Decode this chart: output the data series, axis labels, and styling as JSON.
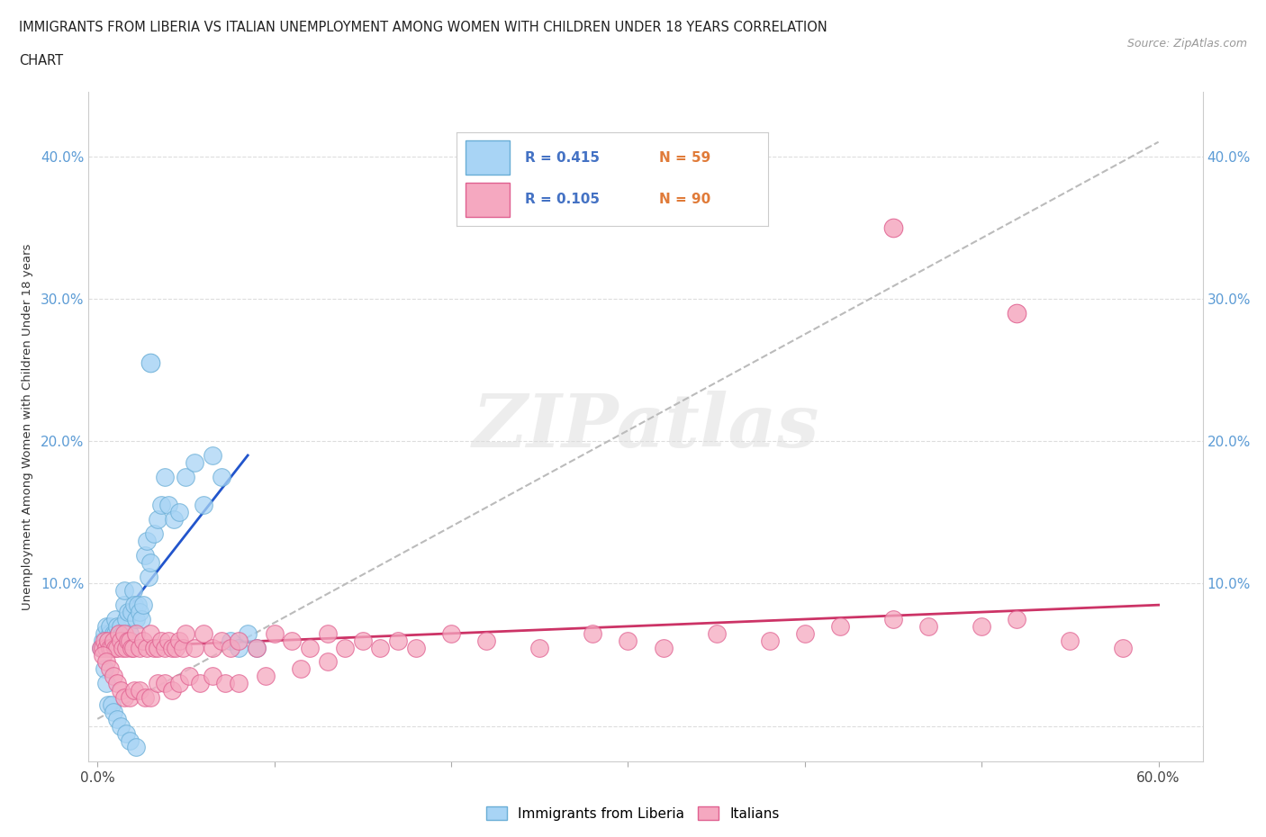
{
  "title_line1": "IMMIGRANTS FROM LIBERIA VS ITALIAN UNEMPLOYMENT AMONG WOMEN WITH CHILDREN UNDER 18 YEARS CORRELATION",
  "title_line2": "CHART",
  "source": "Source: ZipAtlas.com",
  "ylabel": "Unemployment Among Women with Children Under 18 years",
  "xlim": [
    -0.005,
    0.625
  ],
  "ylim": [
    -0.025,
    0.445
  ],
  "xtick_positions": [
    0.0,
    0.1,
    0.2,
    0.3,
    0.4,
    0.5,
    0.6
  ],
  "xticklabels": [
    "0.0%",
    "",
    "",
    "",
    "",
    "",
    "60.0%"
  ],
  "ytick_positions": [
    0.0,
    0.1,
    0.2,
    0.3,
    0.4
  ],
  "yticklabels_left": [
    "",
    "10.0%",
    "20.0%",
    "30.0%",
    "40.0%"
  ],
  "yticklabels_right": [
    "",
    "10.0%",
    "20.0%",
    "30.0%",
    "40.0%"
  ],
  "legend_blue_r": "R = 0.415",
  "legend_blue_n": "N = 59",
  "legend_pink_r": "R = 0.105",
  "legend_pink_n": "N = 90",
  "legend_blue_label": "Immigrants from Liberia",
  "legend_pink_label": "Italians",
  "blue_face": "#A8D4F5",
  "blue_edge": "#6AAED6",
  "pink_face": "#F5A8C0",
  "pink_edge": "#E06090",
  "trendline_blue": "#2255CC",
  "trendline_pink": "#CC3366",
  "trendline_gray": "#BBBBBB",
  "watermark": "ZIPatlas",
  "blue_scatter_x": [
    0.002,
    0.003,
    0.004,
    0.005,
    0.005,
    0.006,
    0.007,
    0.007,
    0.008,
    0.009,
    0.01,
    0.01,
    0.011,
    0.012,
    0.013,
    0.014,
    0.015,
    0.015,
    0.016,
    0.017,
    0.018,
    0.019,
    0.02,
    0.021,
    0.022,
    0.023,
    0.024,
    0.025,
    0.026,
    0.027,
    0.028,
    0.029,
    0.03,
    0.032,
    0.034,
    0.036,
    0.038,
    0.04,
    0.043,
    0.046,
    0.05,
    0.055,
    0.06,
    0.065,
    0.07,
    0.075,
    0.08,
    0.085,
    0.09,
    0.004,
    0.005,
    0.006,
    0.008,
    0.009,
    0.011,
    0.013,
    0.016,
    0.018,
    0.022
  ],
  "blue_scatter_y": [
    0.055,
    0.06,
    0.065,
    0.055,
    0.07,
    0.06,
    0.065,
    0.07,
    0.055,
    0.065,
    0.065,
    0.075,
    0.07,
    0.065,
    0.07,
    0.065,
    0.085,
    0.095,
    0.075,
    0.08,
    0.065,
    0.08,
    0.095,
    0.085,
    0.075,
    0.085,
    0.08,
    0.075,
    0.085,
    0.12,
    0.13,
    0.105,
    0.115,
    0.135,
    0.145,
    0.155,
    0.175,
    0.155,
    0.145,
    0.15,
    0.175,
    0.185,
    0.155,
    0.19,
    0.175,
    0.06,
    0.055,
    0.065,
    0.055,
    0.04,
    0.03,
    0.015,
    0.015,
    0.01,
    0.005,
    0.0,
    -0.005,
    -0.01,
    -0.015
  ],
  "pink_scatter_x": [
    0.002,
    0.003,
    0.004,
    0.005,
    0.006,
    0.007,
    0.008,
    0.009,
    0.01,
    0.011,
    0.012,
    0.013,
    0.014,
    0.015,
    0.016,
    0.017,
    0.018,
    0.019,
    0.02,
    0.022,
    0.024,
    0.026,
    0.028,
    0.03,
    0.032,
    0.034,
    0.036,
    0.038,
    0.04,
    0.042,
    0.044,
    0.046,
    0.048,
    0.05,
    0.055,
    0.06,
    0.065,
    0.07,
    0.075,
    0.08,
    0.09,
    0.1,
    0.11,
    0.12,
    0.13,
    0.14,
    0.15,
    0.16,
    0.17,
    0.18,
    0.2,
    0.22,
    0.25,
    0.28,
    0.3,
    0.32,
    0.35,
    0.38,
    0.4,
    0.42,
    0.45,
    0.47,
    0.5,
    0.52,
    0.55,
    0.58,
    0.003,
    0.005,
    0.007,
    0.009,
    0.011,
    0.013,
    0.015,
    0.018,
    0.021,
    0.024,
    0.027,
    0.03,
    0.034,
    0.038,
    0.042,
    0.046,
    0.052,
    0.058,
    0.065,
    0.072,
    0.08,
    0.095,
    0.115,
    0.13
  ],
  "pink_scatter_y": [
    0.055,
    0.055,
    0.06,
    0.055,
    0.06,
    0.055,
    0.055,
    0.06,
    0.055,
    0.055,
    0.065,
    0.06,
    0.055,
    0.065,
    0.055,
    0.06,
    0.06,
    0.055,
    0.055,
    0.065,
    0.055,
    0.06,
    0.055,
    0.065,
    0.055,
    0.055,
    0.06,
    0.055,
    0.06,
    0.055,
    0.055,
    0.06,
    0.055,
    0.065,
    0.055,
    0.065,
    0.055,
    0.06,
    0.055,
    0.06,
    0.055,
    0.065,
    0.06,
    0.055,
    0.065,
    0.055,
    0.06,
    0.055,
    0.06,
    0.055,
    0.065,
    0.06,
    0.055,
    0.065,
    0.06,
    0.055,
    0.065,
    0.06,
    0.065,
    0.07,
    0.075,
    0.07,
    0.07,
    0.075,
    0.06,
    0.055,
    0.05,
    0.045,
    0.04,
    0.035,
    0.03,
    0.025,
    0.02,
    0.02,
    0.025,
    0.025,
    0.02,
    0.02,
    0.03,
    0.03,
    0.025,
    0.03,
    0.035,
    0.03,
    0.035,
    0.03,
    0.03,
    0.035,
    0.04,
    0.045
  ],
  "blue_trend_x": [
    0.0,
    0.085
  ],
  "blue_trend_y": [
    0.055,
    0.19
  ],
  "pink_trend_x": [
    0.0,
    0.6
  ],
  "pink_trend_y": [
    0.055,
    0.085
  ],
  "gray_trend_x": [
    0.0,
    0.6
  ],
  "gray_trend_y": [
    0.005,
    0.41
  ]
}
